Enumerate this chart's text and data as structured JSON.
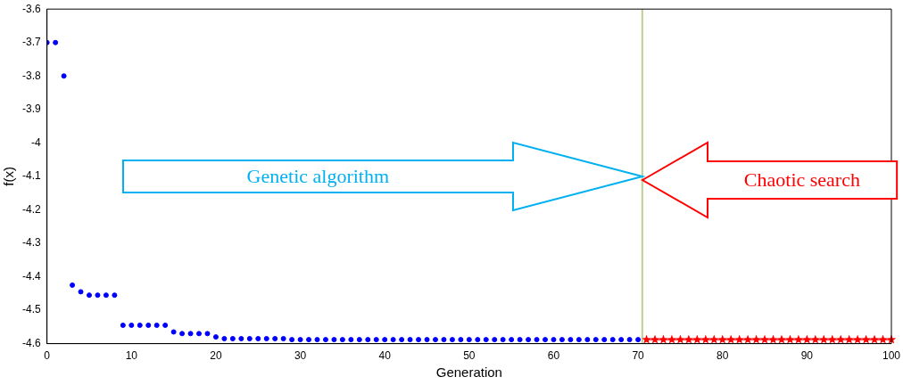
{
  "chart_data": {
    "type": "scatter",
    "xlabel": "Generation",
    "ylabel": "f(x)",
    "xlim": [
      0,
      100
    ],
    "ylim": [
      -4.6,
      -3.6
    ],
    "xticks": [
      0,
      10,
      20,
      30,
      40,
      50,
      60,
      70,
      80,
      90,
      100
    ],
    "yticks": [
      -4.6,
      -4.5,
      -4.4,
      -4.3,
      -4.2,
      -4.1,
      -4,
      -3.9,
      -3.8,
      -3.7,
      -3.6
    ],
    "grid": false,
    "legend": false,
    "series": [
      {
        "color": "#0000ff",
        "marker": "circle",
        "x": [
          0,
          1,
          2,
          3,
          4,
          5,
          6,
          7,
          8,
          9,
          10,
          11,
          12,
          13,
          14,
          15,
          16,
          17,
          18,
          19,
          20,
          21,
          22,
          23,
          24,
          25,
          26,
          27,
          28,
          29,
          30,
          31,
          32,
          33,
          34,
          35,
          36,
          37,
          38,
          39,
          40,
          41,
          42,
          43,
          44,
          45,
          46,
          47,
          48,
          49,
          50,
          51,
          52,
          53,
          54,
          55,
          56,
          57,
          58,
          59,
          60,
          61,
          62,
          63,
          64,
          65,
          66,
          67,
          68,
          69,
          70
        ],
        "values": [
          -3.7,
          -3.7,
          -3.8,
          -4.425,
          -4.445,
          -4.455,
          -4.455,
          -4.455,
          -4.455,
          -4.545,
          -4.545,
          -4.545,
          -4.545,
          -4.545,
          -4.545,
          -4.565,
          -4.57,
          -4.57,
          -4.57,
          -4.57,
          -4.58,
          -4.585,
          -4.585,
          -4.585,
          -4.585,
          -4.585,
          -4.585,
          -4.585,
          -4.585,
          -4.588,
          -4.588,
          -4.588,
          -4.588,
          -4.588,
          -4.588,
          -4.588,
          -4.588,
          -4.588,
          -4.588,
          -4.588,
          -4.588,
          -4.588,
          -4.588,
          -4.588,
          -4.588,
          -4.588,
          -4.588,
          -4.588,
          -4.588,
          -4.588,
          -4.588,
          -4.588,
          -4.588,
          -4.588,
          -4.588,
          -4.588,
          -4.588,
          -4.588,
          -4.588,
          -4.588,
          -4.588,
          -4.588,
          -4.588,
          -4.588,
          -4.588,
          -4.588,
          -4.588,
          -4.588,
          -4.588,
          -4.588,
          -4.588
        ]
      },
      {
        "type": "line",
        "color": "#ff0000",
        "marker": "star",
        "line_style": "solid",
        "x": [
          71,
          72,
          73,
          74,
          75,
          76,
          77,
          78,
          79,
          80,
          81,
          82,
          83,
          84,
          85,
          86,
          87,
          88,
          89,
          90,
          91,
          92,
          93,
          94,
          95,
          96,
          97,
          98,
          99,
          100
        ],
        "values": [
          -4.588,
          -4.588,
          -4.588,
          -4.588,
          -4.588,
          -4.588,
          -4.588,
          -4.588,
          -4.588,
          -4.588,
          -4.588,
          -4.588,
          -4.588,
          -4.588,
          -4.588,
          -4.588,
          -4.588,
          -4.588,
          -4.588,
          -4.588,
          -4.588,
          -4.588,
          -4.588,
          -4.588,
          -4.588,
          -4.588,
          -4.588,
          -4.588,
          -4.588,
          -4.588
        ]
      }
    ],
    "ref_lines": [
      {
        "axis": "x",
        "value": 70.5,
        "color": "#b9d18c"
      }
    ],
    "annotations": [
      "Genetic algorithm",
      "Chaotic search"
    ]
  }
}
